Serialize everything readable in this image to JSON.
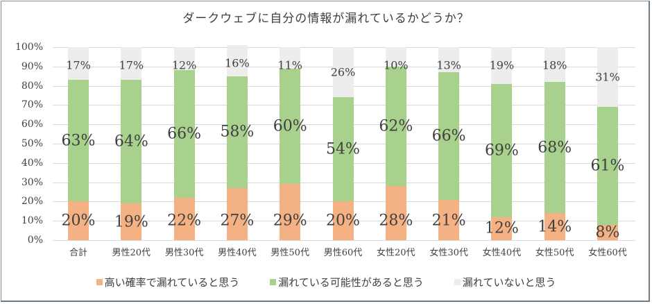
{
  "chart_data": {
    "type": "stacked_bar_100",
    "title": "ダークウェブに自分の情報が漏れているかどうか？",
    "xlabel": "",
    "ylabel": "",
    "ylim": [
      0,
      100
    ],
    "yticks": [
      "0%",
      "10%",
      "20%",
      "30%",
      "40%",
      "50%",
      "60%",
      "70%",
      "80%",
      "90%",
      "100%"
    ],
    "categories": [
      "合計",
      "男性20代",
      "男性30代",
      "男性40代",
      "男性50代",
      "男性60代",
      "女性20代",
      "女性30代",
      "女性40代",
      "女性50代",
      "女性60代"
    ],
    "series": [
      {
        "name": "高い確率で漏れていると思う",
        "color": "#f4b183",
        "values": [
          20,
          19,
          22,
          27,
          29,
          20,
          28,
          21,
          12,
          14,
          8
        ]
      },
      {
        "name": "漏れている可能性があると思う",
        "color": "#a9d18e",
        "values": [
          63,
          64,
          66,
          58,
          60,
          54,
          62,
          66,
          69,
          68,
          61
        ]
      },
      {
        "name": "漏れていないと思う",
        "color": "#ededed",
        "values": [
          17,
          17,
          12,
          16,
          11,
          26,
          10,
          13,
          19,
          18,
          31
        ]
      }
    ],
    "legend_position": "bottom",
    "grid": true
  }
}
